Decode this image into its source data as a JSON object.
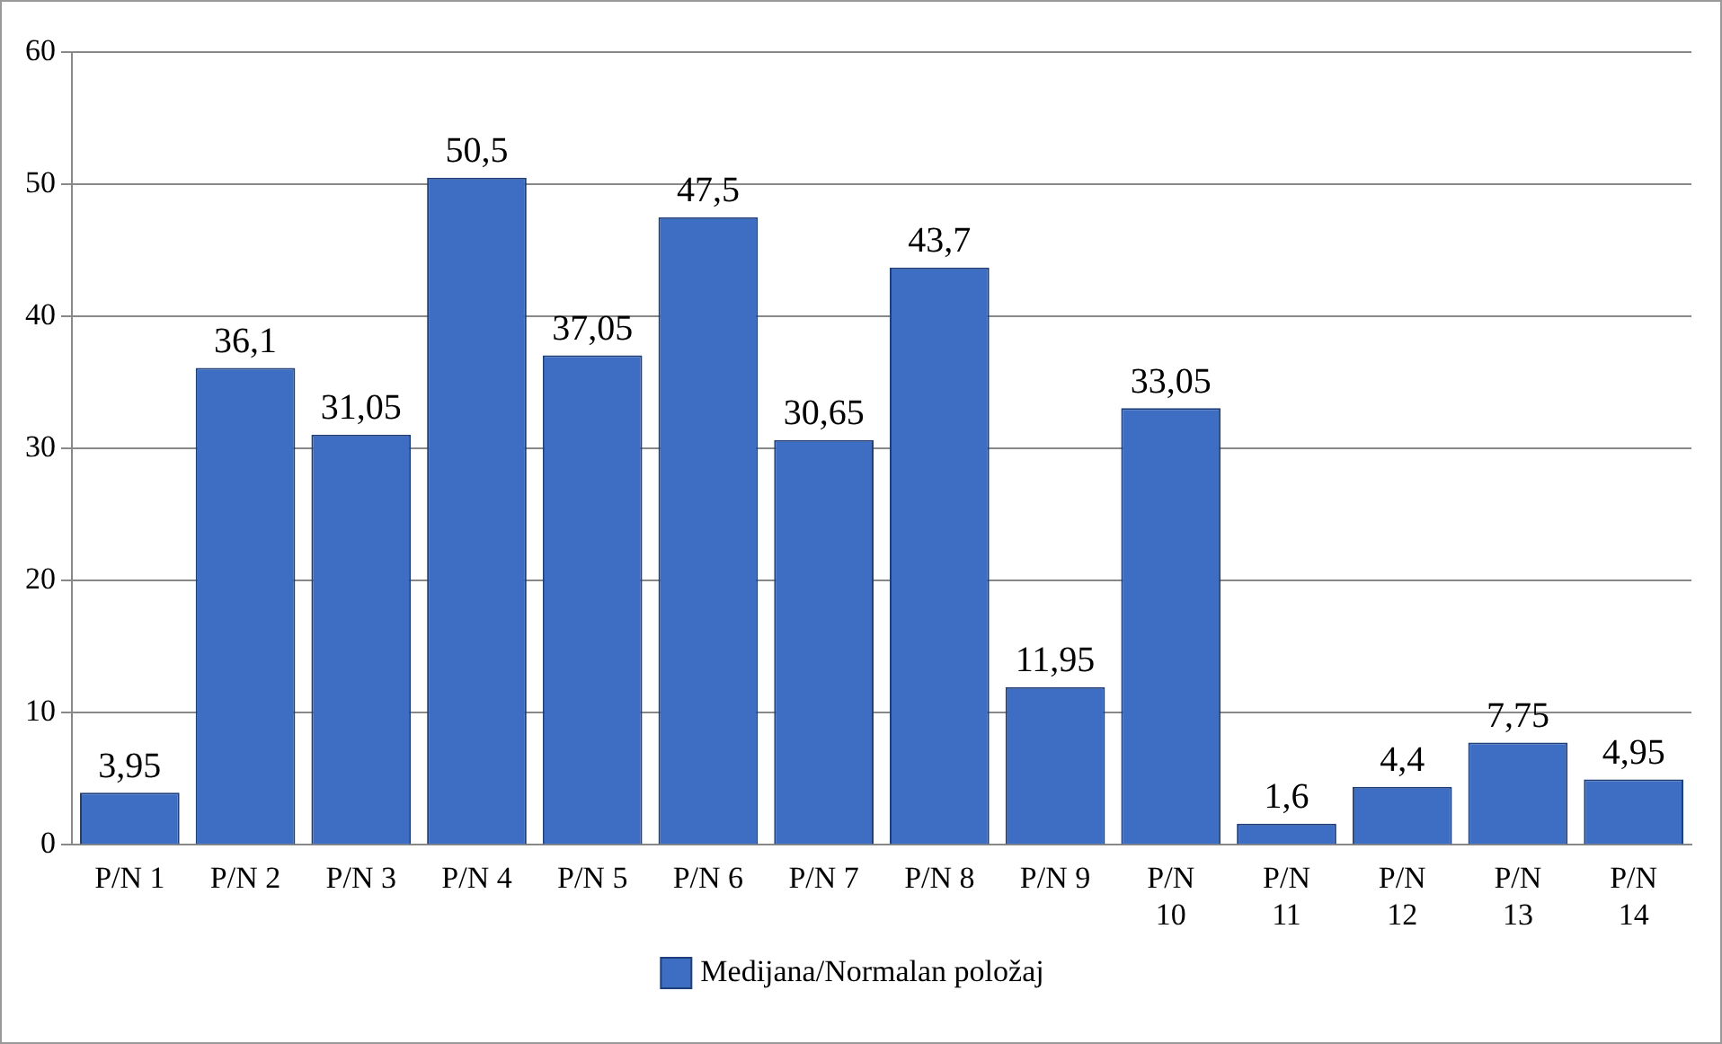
{
  "chart_data": {
    "type": "bar",
    "categories": [
      "P/N 1",
      "P/N 2",
      "P/N 3",
      "P/N 4",
      "P/N 5",
      "P/N 6",
      "P/N 7",
      "P/N 8",
      "P/N 9",
      "P/N 10",
      "P/N 11",
      "P/N 12",
      "P/N 13",
      "P/N 14"
    ],
    "series": [
      {
        "name": "Medijana/Normalan položaj",
        "color": "#3d6ec4",
        "values": [
          3.95,
          36.1,
          31.05,
          50.5,
          37.05,
          47.5,
          30.65,
          43.7,
          11.95,
          33.05,
          1.6,
          4.4,
          7.75,
          4.95
        ],
        "value_labels": [
          "3,95",
          "36,1",
          "31,05",
          "50,5",
          "37,05",
          "47,5",
          "30,65",
          "43,7",
          "11,95",
          "33,05",
          "1,6",
          "4,4",
          "7,75",
          "4,95"
        ]
      }
    ],
    "ylim": [
      0,
      60
    ],
    "yticks": [
      0,
      10,
      20,
      30,
      40,
      50,
      60
    ],
    "grid": "y",
    "legend": "bottom"
  }
}
